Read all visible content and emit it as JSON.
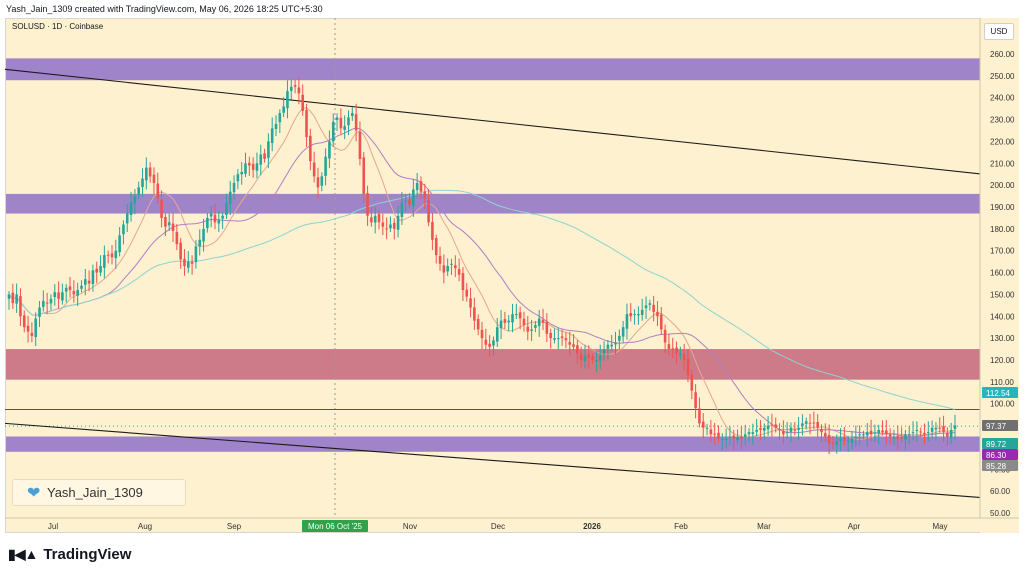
{
  "header": {
    "created_by": "Yash_Jain_1309 created with TradingView.com, May 06, 2026 18:25 UTC+5:30"
  },
  "symbol_label": "SOLUSD · 1D · Coinbase",
  "currency": "USD",
  "watermark": "Yash_Jain_1309",
  "brand": "TradingView",
  "crosshair_date": "Mon 06 Oct '25",
  "colors": {
    "background": "#fdf1cf",
    "zone_purple": "#9b7dc8",
    "zone_red": "#c97083",
    "candle_up": "#26a69a",
    "candle_down": "#ef5350",
    "ma_fast": "#e8a78f",
    "ma_mid": "#b07fc4",
    "ma_slow": "#8fd3d1",
    "trendline": "#1a1a1a"
  },
  "chart_data": {
    "type": "candlestick",
    "y_axis": {
      "ticks": [
        "260.00",
        "250.00",
        "240.00",
        "230.00",
        "220.00",
        "210.00",
        "200.00",
        "190.00",
        "180.00",
        "170.00",
        "160.00",
        "150.00",
        "140.00",
        "130.00",
        "120.00",
        "110.00",
        "100.00",
        "90.00",
        "80.00",
        "70.00",
        "60.00",
        "50.00"
      ],
      "range": [
        50,
        262
      ]
    },
    "x_axis": {
      "labels": [
        "Jul",
        "Aug",
        "Sep",
        "Nov",
        "Dec",
        "2026",
        "Feb",
        "Mar",
        "Apr",
        "May"
      ]
    },
    "price_labels": [
      {
        "text": "112.54",
        "color": "#26b5c0"
      },
      {
        "text": "97.37",
        "color": "#707070"
      },
      {
        "text": "89.72",
        "color": "#26a69a"
      },
      {
        "text": "86.30",
        "color": "#9c27b0"
      },
      {
        "text": "85.28",
        "color": "#8a8a8a"
      }
    ],
    "zones": [
      {
        "low": 248,
        "high": 258,
        "color": "purple"
      },
      {
        "low": 187,
        "high": 196,
        "color": "purple"
      },
      {
        "low": 111,
        "high": 125,
        "color": "red"
      },
      {
        "low": 78,
        "high": 85,
        "color": "purple"
      }
    ],
    "trendlines": [
      {
        "from": {
          "x": "2025-06-11",
          "y": 253
        },
        "to": {
          "x": "2026-05-27",
          "y": 205
        }
      },
      {
        "from": {
          "x": "2025-06-11",
          "y": 91
        },
        "to": {
          "x": "2026-05-27",
          "y": 57
        }
      }
    ],
    "horizontal_line": 97.37,
    "close_dotted_line": 89.72,
    "closes": [
      150,
      146,
      150,
      140,
      135,
      133,
      131,
      139,
      144,
      147,
      146,
      148,
      151,
      148,
      151,
      153,
      152,
      150,
      152,
      154,
      157,
      155,
      161,
      160,
      163,
      168,
      168,
      167,
      170,
      177,
      182,
      187,
      192,
      195,
      199,
      203,
      208,
      204,
      201,
      194,
      185,
      181,
      183,
      179,
      173,
      166,
      163,
      165,
      164,
      172,
      175,
      180,
      185,
      187,
      183,
      184,
      186,
      192,
      197,
      201,
      205,
      206,
      210,
      209,
      207,
      210,
      214,
      212,
      220,
      226,
      228,
      233,
      236,
      243,
      245,
      245,
      242,
      234,
      222,
      211,
      204,
      199,
      204,
      213,
      220,
      229,
      231,
      226,
      227,
      231,
      233,
      225,
      212,
      196,
      186,
      183,
      186,
      183,
      181,
      180,
      182,
      180,
      186,
      192,
      193,
      191,
      198,
      201,
      197,
      194,
      183,
      175,
      168,
      164,
      160,
      163,
      164,
      162,
      159,
      152,
      149,
      144,
      138,
      134,
      130,
      127,
      126,
      129,
      135,
      138,
      137,
      138,
      141,
      141,
      139,
      136,
      133,
      134,
      136,
      139,
      137,
      132,
      130,
      130,
      130,
      130,
      129,
      127,
      126,
      123,
      120,
      122,
      121,
      120,
      120,
      122,
      125,
      127,
      127,
      128,
      131,
      135,
      141,
      140,
      141,
      141,
      143,
      145,
      146,
      142,
      140,
      134,
      128,
      125,
      125,
      123,
      123,
      120,
      113,
      106,
      98,
      91,
      89,
      89,
      86,
      86,
      84,
      84,
      84,
      85,
      84,
      85,
      84,
      86,
      87,
      87,
      88,
      88,
      89,
      90,
      90,
      89,
      88,
      86,
      87,
      89,
      88,
      89,
      91,
      92,
      91,
      91,
      89,
      87,
      85,
      82,
      82,
      83,
      84,
      83,
      83,
      84,
      85,
      86,
      86,
      87,
      86,
      87,
      88,
      87,
      86,
      85,
      85,
      84,
      84,
      86,
      86,
      87,
      88,
      87,
      86,
      87,
      89,
      89,
      89,
      87,
      85,
      88,
      90
    ]
  }
}
